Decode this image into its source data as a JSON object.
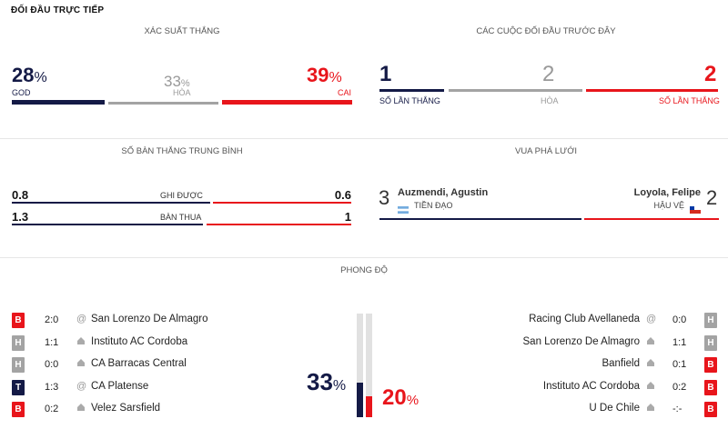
{
  "header": {
    "title": "ĐỐI ĐẦU TRỰC TIẾP"
  },
  "win_prob": {
    "title": "XÁC SUẤT THẮNG",
    "home": {
      "value": "28",
      "unit": "%",
      "label": "GOD",
      "percent": 28
    },
    "draw": {
      "value": "33",
      "unit": "%",
      "label": "HÒA",
      "percent": 33
    },
    "away": {
      "value": "39",
      "unit": "%",
      "label": "CAI",
      "percent": 39
    },
    "colors": {
      "home": "#141a46",
      "draw": "#a3a3a3",
      "away": "#e8151b"
    }
  },
  "past_meetings": {
    "title": "CÁC CUỘC ĐỐI ĐẦU TRƯỚC ĐÂY",
    "home": {
      "value": "1",
      "label": "SỐ LẦN THẮNG"
    },
    "draw": {
      "value": "2",
      "label": "HÒA"
    },
    "away": {
      "value": "2",
      "label": "SỐ LẦN THẮNG"
    }
  },
  "avg_goals": {
    "title": "SỐ BÀN THẮNG TRUNG BÌNH",
    "rows": [
      {
        "label": "GHI ĐƯỢC",
        "home": "0.8",
        "away": "0.6"
      },
      {
        "label": "BÀN THUA",
        "home": "1.3",
        "away": "1"
      }
    ]
  },
  "top_scorers": {
    "title": "VUA PHÁ LƯỚI",
    "home": {
      "goals": "3",
      "name": "Auzmendi, Agustin",
      "position": "TIỀN ĐẠO",
      "flag": "argentina-flag-icon"
    },
    "away": {
      "goals": "2",
      "name": "Loyola, Felipe",
      "position": "HẬU VỆ",
      "flag": "chile-flag-icon"
    }
  },
  "form": {
    "title": "PHONG ĐỘ",
    "home_pct": {
      "value": "33",
      "unit": "%",
      "percent": 33
    },
    "away_pct": {
      "value": "20",
      "unit": "%",
      "percent": 20
    },
    "home": [
      {
        "result": "B",
        "score": "2:0",
        "venue": "away",
        "venue_icon": "at-icon",
        "team": "San Lorenzo De Almagro"
      },
      {
        "result": "H",
        "score": "1:1",
        "venue": "home",
        "venue_icon": "home-icon",
        "team": "Instituto AC Cordoba"
      },
      {
        "result": "H",
        "score": "0:0",
        "venue": "home",
        "venue_icon": "home-icon",
        "team": "CA Barracas Central"
      },
      {
        "result": "T",
        "score": "1:3",
        "venue": "away",
        "venue_icon": "at-icon",
        "team": "CA Platense"
      },
      {
        "result": "B",
        "score": "0:2",
        "venue": "home",
        "venue_icon": "home-icon",
        "team": "Velez Sarsfield"
      }
    ],
    "away": [
      {
        "result": "H",
        "score": "0:0",
        "venue": "away",
        "venue_icon": "at-icon",
        "team": "Racing Club Avellaneda"
      },
      {
        "result": "H",
        "score": "1:1",
        "venue": "home",
        "venue_icon": "home-icon",
        "team": "San Lorenzo De Almagro"
      },
      {
        "result": "B",
        "score": "0:1",
        "venue": "home",
        "venue_icon": "home-icon",
        "team": "Banfield"
      },
      {
        "result": "B",
        "score": "0:2",
        "venue": "home",
        "venue_icon": "home-icon",
        "team": "Instituto AC Cordoba"
      },
      {
        "result": "B",
        "score": "-:-",
        "venue": "home",
        "venue_icon": "home-icon",
        "team": "U De Chile"
      }
    ]
  }
}
